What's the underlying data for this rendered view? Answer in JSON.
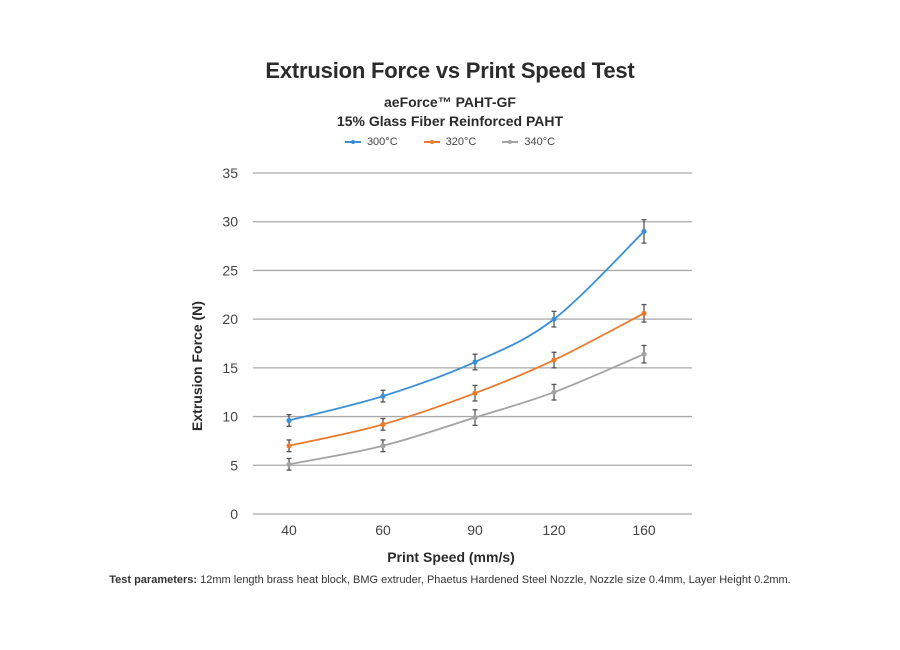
{
  "chart_data": {
    "type": "line",
    "title": "Extrusion Force vs Print Speed Test",
    "subtitle": [
      "aeForce™ PAHT-GF",
      "15% Glass Fiber Reinforced PAHT"
    ],
    "xlabel": "Print Speed (mm/s)",
    "ylabel": "Extrusion Force (N)",
    "categories": [
      "40",
      "60",
      "90",
      "120",
      "160"
    ],
    "ylim": [
      0,
      35
    ],
    "yticks": [
      "0",
      "5",
      "10",
      "15",
      "20",
      "25",
      "30",
      "35"
    ],
    "grid": true,
    "legend_position": "top-center",
    "error_bars": true,
    "series": [
      {
        "name": "300°C",
        "color": "#3a8fd6",
        "values": [
          9.6,
          12.1,
          15.6,
          20.0,
          29.0
        ],
        "error": [
          0.6,
          0.6,
          0.8,
          0.8,
          1.2
        ]
      },
      {
        "name": "320°C",
        "color": "#ec7a2c",
        "values": [
          7.0,
          9.2,
          12.4,
          15.8,
          20.6
        ],
        "error": [
          0.6,
          0.6,
          0.8,
          0.8,
          0.9
        ]
      },
      {
        "name": "340°C",
        "color": "#a3a3a3",
        "values": [
          5.1,
          7.0,
          9.9,
          12.5,
          16.4
        ],
        "error": [
          0.6,
          0.6,
          0.8,
          0.8,
          0.9
        ]
      }
    ]
  },
  "footnote": {
    "label": "Test parameters:",
    "text": " 12mm length brass heat block, BMG extruder, Phaetus Hardened Steel Nozzle, Nozzle size 0.4mm, Layer Height 0.2mm."
  }
}
